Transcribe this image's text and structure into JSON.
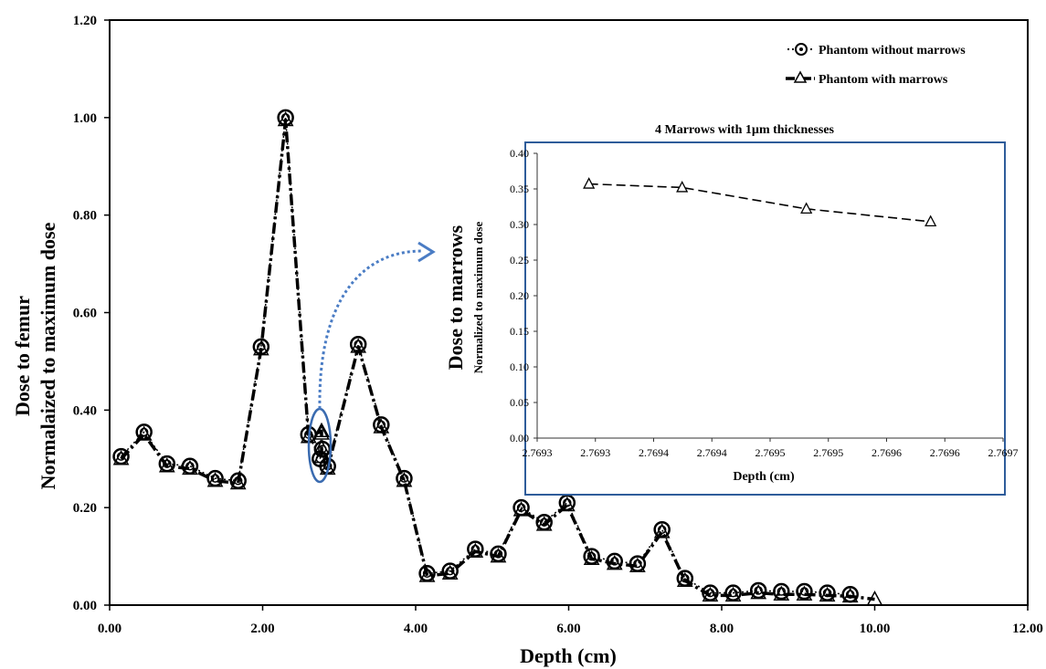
{
  "chart_data": [
    {
      "type": "line",
      "title": "",
      "xlabel": "Depth (cm)",
      "ylabel_line1": "Dose to femur",
      "ylabel_line2": "Normalaized to maximum dose",
      "xlim": [
        0,
        12
      ],
      "ylim": [
        0,
        1.2
      ],
      "x_ticks": [
        "0.00",
        "2.00",
        "4.00",
        "6.00",
        "8.00",
        "10.00",
        "12.00"
      ],
      "y_ticks": [
        "0.00",
        "0.20",
        "0.40",
        "0.60",
        "0.80",
        "1.00",
        "1.20"
      ],
      "grid": false,
      "legend_position": "top-right",
      "series": [
        {
          "name": "Phantom without marrows",
          "marker": "circle",
          "line_style": "dotted",
          "x": [
            0.15,
            0.45,
            0.75,
            1.05,
            1.38,
            1.68,
            1.98,
            2.3,
            2.6,
            2.75,
            2.78,
            2.85,
            3.25,
            3.55,
            3.85,
            4.15,
            4.45,
            4.78,
            5.08,
            5.38,
            5.68,
            5.98,
            6.3,
            6.6,
            6.9,
            7.22,
            7.52,
            7.85,
            8.15,
            8.48,
            8.78,
            9.08,
            9.38,
            9.68
          ],
          "values": [
            0.305,
            0.355,
            0.29,
            0.285,
            0.26,
            0.255,
            0.53,
            1.0,
            0.35,
            0.3,
            0.32,
            0.285,
            0.535,
            0.37,
            0.26,
            0.065,
            0.07,
            0.115,
            0.105,
            0.2,
            0.17,
            0.21,
            0.1,
            0.09,
            0.085,
            0.155,
            0.055,
            0.025,
            0.025,
            0.03,
            0.028,
            0.028,
            0.025,
            0.022
          ]
        },
        {
          "name": "Phantom with marrows",
          "marker": "triangle",
          "line_style": "dash-dot",
          "x": [
            0.15,
            0.45,
            0.75,
            1.05,
            1.38,
            1.68,
            1.98,
            2.3,
            2.6,
            2.77,
            2.77,
            2.77,
            2.77,
            2.85,
            3.25,
            3.55,
            3.85,
            4.15,
            4.45,
            4.78,
            5.08,
            5.38,
            5.68,
            5.98,
            6.3,
            6.6,
            6.9,
            7.22,
            7.52,
            7.85,
            8.15,
            8.48,
            8.78,
            9.08,
            9.38,
            9.68,
            10.0
          ],
          "values": [
            0.3,
            0.35,
            0.285,
            0.28,
            0.255,
            0.25,
            0.525,
            0.995,
            0.345,
            0.357,
            0.352,
            0.322,
            0.304,
            0.28,
            0.53,
            0.365,
            0.255,
            0.06,
            0.065,
            0.11,
            0.1,
            0.195,
            0.165,
            0.205,
            0.095,
            0.085,
            0.08,
            0.15,
            0.05,
            0.02,
            0.02,
            0.025,
            0.022,
            0.022,
            0.02,
            0.018,
            0.012
          ]
        }
      ]
    },
    {
      "type": "line",
      "title": "4 Marrows with  1µm thicknesses",
      "xlabel": "Depth (cm)",
      "ylabel_line1": "Dose to marrows",
      "ylabel_line2": "Normalized to maximum dose",
      "xlim": [
        2.76925,
        2.7697
      ],
      "ylim": [
        0,
        0.4
      ],
      "x_ticks": [
        "2.7693",
        "2.7693",
        "2.7694",
        "2.7694",
        "2.7695",
        "2.7695",
        "2.7696",
        "2.7696",
        "2.7697"
      ],
      "y_ticks": [
        "0.00",
        "0.05",
        "0.10",
        "0.15",
        "0.20",
        "0.25",
        "0.30",
        "0.35",
        "0.40"
      ],
      "grid": false,
      "series": [
        {
          "name": "Phantom with marrows",
          "marker": "triangle",
          "line_style": "dashed",
          "x": [
            2.7693,
            2.76939,
            2.76951,
            2.76963
          ],
          "values": [
            0.357,
            0.352,
            0.322,
            0.304
          ]
        }
      ]
    }
  ],
  "colors": {
    "axis": "#000000",
    "inset_frame": "#2e5c9a",
    "annotation_arrow": "#4a7cc4",
    "marrow_ellipse": "#3a6bb0"
  }
}
